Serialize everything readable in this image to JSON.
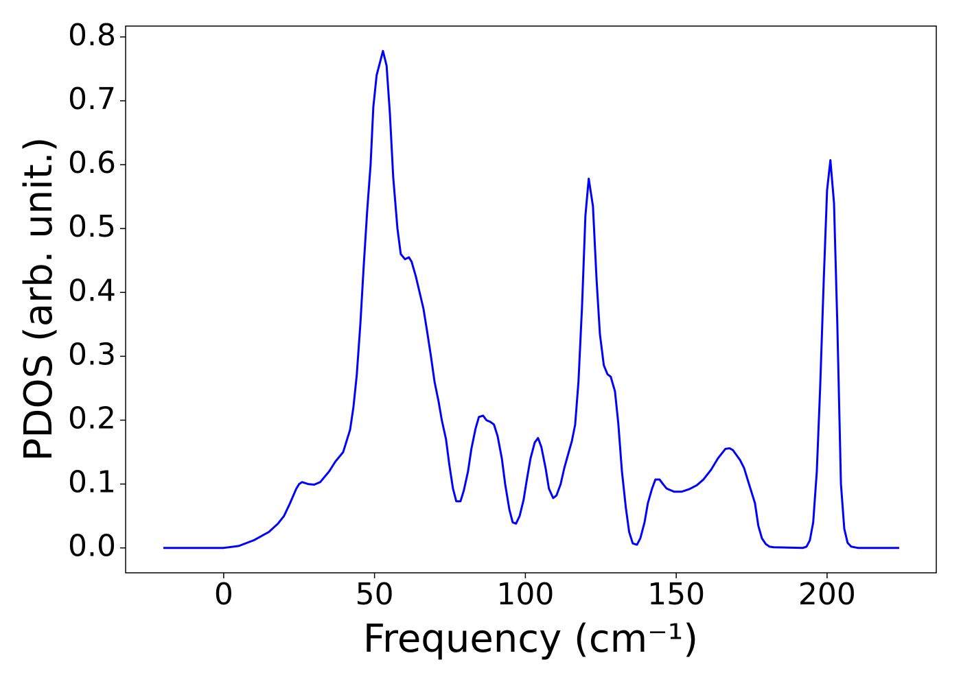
{
  "chart_data": {
    "type": "line",
    "xlabel": "Frequency (cm⁻¹)",
    "ylabel": "PDOS (arb. unit.)",
    "x": [
      -20,
      -10,
      0,
      5,
      10,
      15,
      18,
      20,
      22,
      24,
      25,
      26,
      28,
      30,
      32,
      35,
      37,
      39.6,
      41.9,
      43,
      44.1,
      45.3,
      46.4,
      47.6,
      48.7,
      49.6,
      50.7,
      52.8,
      54,
      55.1,
      56.2,
      57.6,
      58.7,
      60.1,
      61.4,
      62.3,
      63.7,
      66.2,
      67.4,
      68.7,
      69.9,
      71.2,
      72.3,
      73.7,
      74.8,
      76,
      77.1,
      78.5,
      79.6,
      81,
      82.1,
      83.5,
      84.6,
      86,
      87.1,
      88.5,
      89.6,
      90.8,
      92.2,
      93.3,
      94.7,
      95.8,
      96.9,
      98.1,
      99.4,
      100.6,
      101.7,
      103.1,
      104.2,
      105.3,
      106.7,
      107.8,
      109.2,
      110.3,
      111.7,
      112.9,
      114.2,
      115.4,
      116.5,
      117.6,
      118.8,
      119.9,
      121,
      122.4,
      123.6,
      124.7,
      126,
      127.2,
      128.3,
      129.7,
      130.8,
      132,
      133.3,
      134.4,
      135.6,
      137,
      138.1,
      139.5,
      140.6,
      142,
      143.1,
      144.5,
      145.6,
      146.8,
      149.3,
      151.8,
      154.3,
      156.8,
      159,
      161.5,
      163.8,
      166.3,
      167.7,
      168.8,
      171.1,
      172.5,
      173.6,
      176.1,
      177.2,
      178.4,
      179.7,
      180.9,
      182.3,
      192,
      193.2,
      194.3,
      195.4,
      196.6,
      197.7,
      198.9,
      200,
      201.1,
      202.3,
      203.4,
      204.6,
      205.7,
      206.8,
      208,
      210.2,
      223.9
    ],
    "series": [
      {
        "color": "#0000ff",
        "values": [
          0,
          0,
          0,
          0.003,
          0.012,
          0.025,
          0.038,
          0.05,
          0.07,
          0.092,
          0.1,
          0.103,
          0.1,
          0.099,
          0.103,
          0.12,
          0.135,
          0.15,
          0.185,
          0.22,
          0.27,
          0.35,
          0.44,
          0.53,
          0.6,
          0.69,
          0.74,
          0.778,
          0.755,
          0.68,
          0.58,
          0.5,
          0.46,
          0.452,
          0.455,
          0.448,
          0.425,
          0.375,
          0.34,
          0.3,
          0.26,
          0.23,
          0.2,
          0.17,
          0.13,
          0.093,
          0.073,
          0.073,
          0.09,
          0.12,
          0.155,
          0.187,
          0.205,
          0.207,
          0.2,
          0.197,
          0.193,
          0.175,
          0.14,
          0.1,
          0.06,
          0.04,
          0.038,
          0.05,
          0.075,
          0.11,
          0.14,
          0.165,
          0.172,
          0.158,
          0.125,
          0.093,
          0.078,
          0.082,
          0.1,
          0.125,
          0.147,
          0.167,
          0.193,
          0.26,
          0.38,
          0.52,
          0.578,
          0.535,
          0.42,
          0.335,
          0.286,
          0.272,
          0.268,
          0.245,
          0.195,
          0.12,
          0.063,
          0.025,
          0.007,
          0.005,
          0.015,
          0.04,
          0.07,
          0.093,
          0.107,
          0.107,
          0.1,
          0.093,
          0.088,
          0.088,
          0.092,
          0.098,
          0.107,
          0.122,
          0.14,
          0.155,
          0.156,
          0.153,
          0.138,
          0.125,
          0.108,
          0.07,
          0.035,
          0.015,
          0.006,
          0.002,
          0.001,
          0,
          0.002,
          0.012,
          0.04,
          0.12,
          0.25,
          0.42,
          0.56,
          0.607,
          0.54,
          0.35,
          0.1,
          0.03,
          0.008,
          0.002,
          0,
          0
        ]
      }
    ],
    "xlim": [
      -32.5,
      236.2
    ],
    "ylim": [
      -0.039,
      0.817
    ],
    "xticks": [
      0,
      50,
      100,
      150,
      200
    ],
    "yticks": [
      {
        "value": 0,
        "label": "0.0"
      },
      0.1,
      0.2,
      0.3,
      0.4,
      0.5,
      0.6,
      0.7,
      0.8
    ],
    "grid": false
  }
}
